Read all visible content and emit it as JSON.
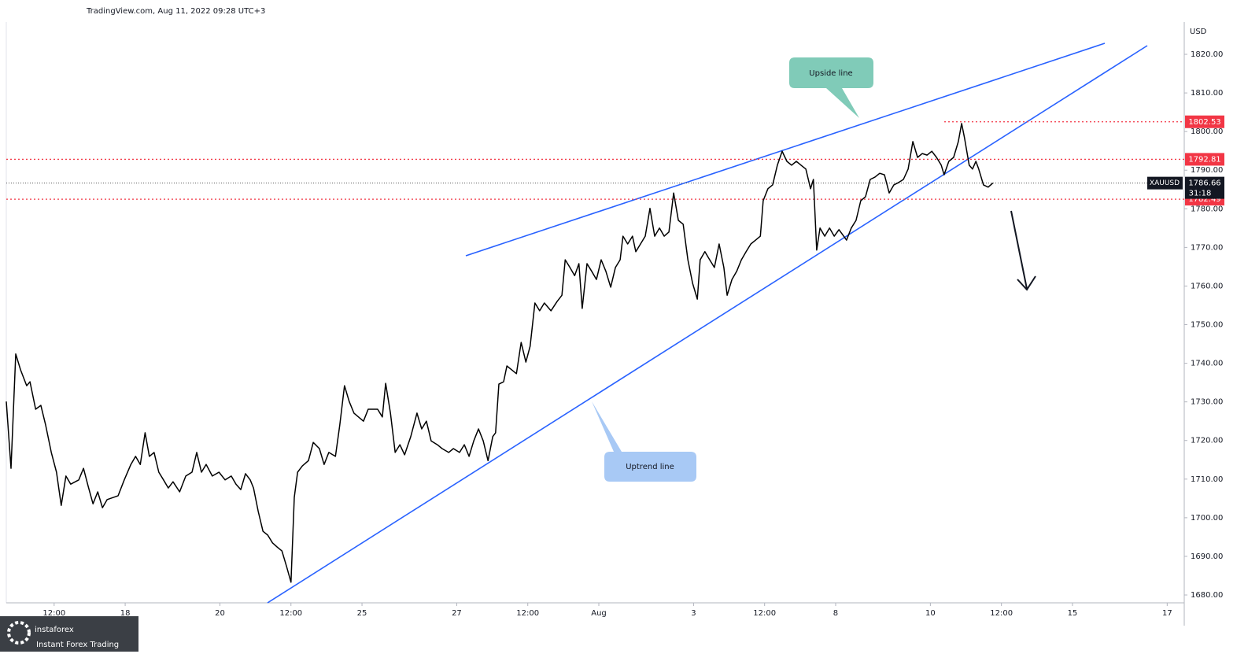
{
  "header": "TradingView.com, Aug 11, 2022 09:28 UTC+3",
  "chart_data": {
    "type": "line",
    "currency": "USD",
    "x": [
      -2.51,
      -2.41,
      -2.31,
      -2.21,
      -2.08,
      -2.01,
      -1.89,
      -1.78,
      -1.68,
      -1.56,
      -1.45,
      -1.35,
      -1.25,
      -1.15,
      -0.98,
      -0.88,
      -0.78,
      -0.68,
      -0.58,
      -0.48,
      -0.38,
      -0.15,
      -0.02,
      0.12,
      0.22,
      0.32,
      0.42,
      0.51,
      0.61,
      0.71,
      0.81,
      0.91,
      1.01,
      1.15,
      1.28,
      1.41,
      1.51,
      1.61,
      1.71,
      1.84,
      1.98,
      2.11,
      2.24,
      2.34,
      2.44,
      2.54,
      2.64,
      2.71,
      2.81,
      2.91,
      3.01,
      3.11,
      3.21,
      3.31,
      3.41,
      3.5,
      3.57,
      3.64,
      3.74,
      3.87,
      3.97,
      4.1,
      4.2,
      4.3,
      4.44,
      4.53,
      4.63,
      4.73,
      4.83,
      5.03,
      5.13,
      5.33,
      5.43,
      5.5,
      5.6,
      5.7,
      5.8,
      5.9,
      6.03,
      6.16,
      6.26,
      6.36,
      6.46,
      6.59,
      6.69,
      6.83,
      6.93,
      7.06,
      7.16,
      7.26,
      7.36,
      7.46,
      7.56,
      7.66,
      7.76,
      7.82,
      7.89,
      7.99,
      8.06,
      8.16,
      8.26,
      8.36,
      8.46,
      8.55,
      8.65,
      8.75,
      8.85,
      8.99,
      9.12,
      9.22,
      9.29,
      9.39,
      9.49,
      9.58,
      9.65,
      9.75,
      9.85,
      9.95,
      10.05,
      10.15,
      10.25,
      10.35,
      10.45,
      10.51,
      10.61,
      10.71,
      10.78,
      10.88,
      10.98,
      11.08,
      11.18,
      11.28,
      11.38,
      11.48,
      11.58,
      11.68,
      11.78,
      11.88,
      11.98,
      12.08,
      12.14,
      12.24,
      12.34,
      12.44,
      12.54,
      12.64,
      12.71,
      12.81,
      12.91,
      13.01,
      13.11,
      13.21,
      13.31,
      13.41,
      13.47,
      13.57,
      13.67,
      13.77,
      13.87,
      13.97,
      14.07,
      14.17,
      14.27,
      14.37,
      14.47,
      14.53,
      14.6,
      14.67,
      14.77,
      14.87,
      14.97,
      15.07,
      15.17,
      15.23,
      15.33,
      15.43,
      15.53,
      15.63,
      15.73,
      15.83,
      15.93,
      16.03,
      16.13,
      16.23,
      16.33,
      16.43,
      16.53,
      16.63,
      16.73,
      16.83,
      16.93,
      17.03,
      17.13,
      17.23,
      17.29,
      17.39,
      17.49,
      17.59,
      17.66,
      17.72,
      17.82,
      17.89,
      17.96,
      18.02,
      18.12,
      18.22,
      18.32
    ],
    "series": [
      {
        "name": "XAUUSD",
        "color": "#000000",
        "values": [
          1730.1,
          1712.8,
          1742.4,
          1738.3,
          1734.2,
          1735.2,
          1728.1,
          1729.1,
          1724.0,
          1716.9,
          1711.8,
          1703.2,
          1710.8,
          1708.7,
          1709.8,
          1712.8,
          1708.1,
          1703.6,
          1706.7,
          1702.6,
          1704.7,
          1705.7,
          1709.8,
          1713.8,
          1715.9,
          1713.8,
          1722.0,
          1715.9,
          1716.9,
          1711.8,
          1709.8,
          1707.7,
          1709.3,
          1706.7,
          1710.8,
          1711.8,
          1716.9,
          1711.8,
          1713.8,
          1710.8,
          1711.8,
          1709.8,
          1710.8,
          1708.7,
          1707.3,
          1711.4,
          1709.8,
          1707.7,
          1701.6,
          1696.5,
          1695.5,
          1693.5,
          1692.4,
          1691.4,
          1687.3,
          1683.3,
          1705.3,
          1711.8,
          1713.4,
          1714.8,
          1719.5,
          1717.9,
          1713.8,
          1716.9,
          1715.9,
          1724.0,
          1734.2,
          1730.1,
          1727.1,
          1725.0,
          1728.1,
          1728.1,
          1726.1,
          1734.8,
          1727.1,
          1716.9,
          1718.9,
          1716.3,
          1721.0,
          1727.1,
          1723.0,
          1725.0,
          1719.9,
          1718.9,
          1717.9,
          1716.9,
          1717.9,
          1716.9,
          1718.9,
          1715.9,
          1719.9,
          1723.0,
          1719.9,
          1714.8,
          1721.0,
          1722.0,
          1734.6,
          1735.2,
          1739.3,
          1738.3,
          1737.3,
          1745.4,
          1740.3,
          1744.4,
          1755.6,
          1753.6,
          1755.6,
          1753.6,
          1756.0,
          1757.6,
          1766.8,
          1764.8,
          1762.7,
          1765.8,
          1754.2,
          1765.8,
          1763.8,
          1761.7,
          1766.8,
          1763.8,
          1759.7,
          1764.8,
          1766.8,
          1772.9,
          1770.9,
          1772.9,
          1768.9,
          1770.9,
          1772.9,
          1780.1,
          1772.9,
          1775.0,
          1772.9,
          1774.0,
          1784.1,
          1777.0,
          1776.0,
          1766.8,
          1760.7,
          1756.6,
          1766.8,
          1768.9,
          1766.8,
          1764.8,
          1770.9,
          1764.8,
          1757.6,
          1761.7,
          1763.8,
          1766.8,
          1768.9,
          1770.9,
          1771.9,
          1772.9,
          1782.1,
          1785.2,
          1786.2,
          1791.3,
          1794.9,
          1792.3,
          1791.3,
          1792.3,
          1791.3,
          1790.3,
          1785.2,
          1787.6,
          1769.3,
          1775.0,
          1772.9,
          1775.0,
          1772.9,
          1774.6,
          1772.9,
          1771.9,
          1775.0,
          1777.0,
          1782.1,
          1783.1,
          1787.6,
          1788.2,
          1789.2,
          1788.8,
          1784.1,
          1786.2,
          1786.8,
          1787.6,
          1790.3,
          1797.4,
          1793.3,
          1794.3,
          1793.9,
          1794.9,
          1793.3,
          1791.3,
          1788.8,
          1792.3,
          1793.3,
          1797.4,
          1802.1,
          1798.4,
          1791.3,
          1790.3,
          1792.3,
          1790.3,
          1786.2,
          1785.6,
          1786.66
        ]
      }
    ],
    "last_price": 1786.66,
    "countdown": "31:18",
    "levels": [
      {
        "value": 1802.53,
        "color": "#f23645"
      },
      {
        "value": 1792.81,
        "color": "#f23645"
      },
      {
        "value": 1782.49,
        "color": "#f23645"
      }
    ],
    "annotations": [
      "Upside line",
      "Uptrend line"
    ],
    "xlim": [
      -2.51,
      22.36
    ],
    "ylim": [
      1678.17,
      1828.36
    ],
    "xticks": [
      {
        "value": -1.5,
        "label": "12:00"
      },
      {
        "value": 0,
        "label": "18"
      },
      {
        "value": 2,
        "label": "20"
      },
      {
        "value": 3.5,
        "label": "12:00"
      },
      {
        "value": 5,
        "label": "25"
      },
      {
        "value": 7,
        "label": "27"
      },
      {
        "value": 8.5,
        "label": "12:00"
      },
      {
        "value": 10,
        "label": "Aug"
      },
      {
        "value": 12,
        "label": "3"
      },
      {
        "value": 13.5,
        "label": "12:00"
      },
      {
        "value": 15,
        "label": "8"
      },
      {
        "value": 17,
        "label": "10"
      },
      {
        "value": 18.5,
        "label": "12:00"
      },
      {
        "value": 20,
        "label": "15"
      },
      {
        "value": 22,
        "label": "17"
      }
    ],
    "yticks": [
      {
        "value": 1680,
        "label": "1680.00"
      },
      {
        "value": 1690,
        "label": "1690.00"
      },
      {
        "value": 1700,
        "label": "1700.00"
      },
      {
        "value": 1710,
        "label": "1710.00"
      },
      {
        "value": 1720,
        "label": "1720.00"
      },
      {
        "value": 1730,
        "label": "1730.00"
      },
      {
        "value": 1740,
        "label": "1740.00"
      },
      {
        "value": 1750,
        "label": "1750.00"
      },
      {
        "value": 1760,
        "label": "1760.00"
      },
      {
        "value": 1770,
        "label": "1770.00"
      },
      {
        "value": 1780,
        "label": "1780.00"
      },
      {
        "value": 1790,
        "label": "1790.00"
      },
      {
        "value": 1800,
        "label": "1800.00"
      },
      {
        "value": 1810,
        "label": "1810.00"
      },
      {
        "value": 1820,
        "label": "1820.00"
      }
    ]
  },
  "logo": {
    "name": "instaforex",
    "tagline": "Instant Forex Trading"
  }
}
